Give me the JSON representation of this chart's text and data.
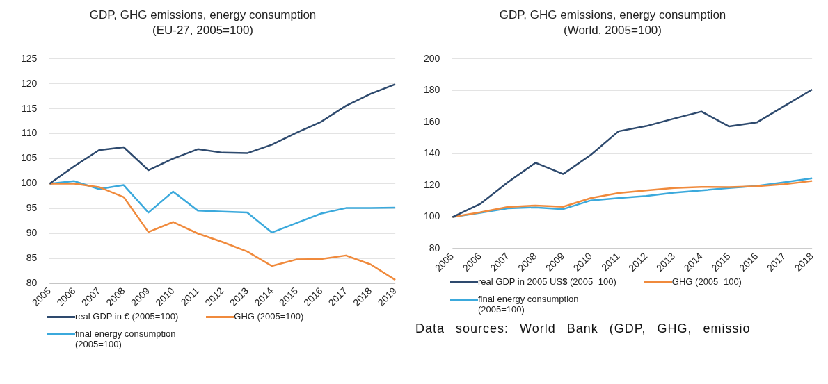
{
  "chart_data": [
    {
      "type": "line",
      "title": "GDP, GHG emissions, energy consumption",
      "subtitle": "(EU-27, 2005=100)",
      "categories": [
        "2005",
        "2006",
        "2007",
        "2008",
        "2009",
        "2010",
        "2011",
        "2012",
        "2013",
        "2014",
        "2015",
        "2016",
        "2017",
        "2018",
        "2019"
      ],
      "series": [
        {
          "name": "real GDP in € (2005=100)",
          "color": "#2e4a6e",
          "values": [
            100,
            103.5,
            106.7,
            107.3,
            102.7,
            105,
            106.9,
            106.2,
            106.1,
            107.8,
            110.2,
            112.4,
            115.6,
            118,
            119.9
          ]
        },
        {
          "name": "GHG (2005=100)",
          "color": "#f08a3c",
          "values": [
            100,
            100,
            99.3,
            97.3,
            90.3,
            92.3,
            90,
            88.3,
            86.4,
            83.5,
            84.8,
            84.9,
            85.6,
            83.8,
            80.7
          ]
        },
        {
          "name": "final energy consumption (2005=100)",
          "color": "#3ba9dc",
          "values": [
            100,
            100.5,
            98.9,
            99.7,
            94.2,
            98.4,
            94.6,
            94.4,
            94.2,
            90.2,
            92.1,
            94,
            95.1,
            95.1,
            95.2
          ]
        }
      ],
      "ylim": [
        80,
        125
      ],
      "yticks": [
        80,
        85,
        90,
        95,
        100,
        105,
        110,
        115,
        120,
        125
      ],
      "grid": "y",
      "legend": "bottom",
      "marker": "none",
      "line_style": "solid"
    },
    {
      "type": "line",
      "title": "GDP, GHG emissions, energy consumption",
      "subtitle": "(World, 2005=100)",
      "categories": [
        "2005",
        "2006",
        "2007",
        "2008",
        "2009",
        "2010",
        "2011",
        "2012",
        "2013",
        "2014",
        "2015",
        "2016",
        "2017",
        "2018"
      ],
      "series": [
        {
          "name": "real GDP in 2005 US$ (2005=100)",
          "color": "#2e4a6e",
          "values": [
            100,
            108.3,
            122,
            134.3,
            127.2,
            139.3,
            154.2,
            157.5,
            162.2,
            166.7,
            157.3,
            159.8,
            170.2,
            180.6
          ]
        },
        {
          "name": "GHG (2005=100)",
          "color": "#f08a3c",
          "values": [
            100,
            103,
            106.4,
            107.3,
            106.5,
            112,
            115.2,
            116.8,
            118.4,
            119,
            118.9,
            119.4,
            120.8,
            122.8
          ]
        },
        {
          "name": "final energy consumption (2005=100)",
          "color": "#3ba9dc",
          "values": [
            100,
            102.6,
            105.5,
            106.1,
            105,
            110.5,
            112,
            113.3,
            115.4,
            116.8,
            118.3,
            119.7,
            122,
            124.5
          ]
        }
      ],
      "ylim": [
        80,
        200
      ],
      "yticks": [
        80,
        100,
        120,
        140,
        160,
        180,
        200
      ],
      "grid": "y",
      "legend": "bottom",
      "marker": "none",
      "line_style": "solid",
      "annotations": [
        "Data sources: World Bank (GDP, GHG, emissio"
      ]
    }
  ]
}
